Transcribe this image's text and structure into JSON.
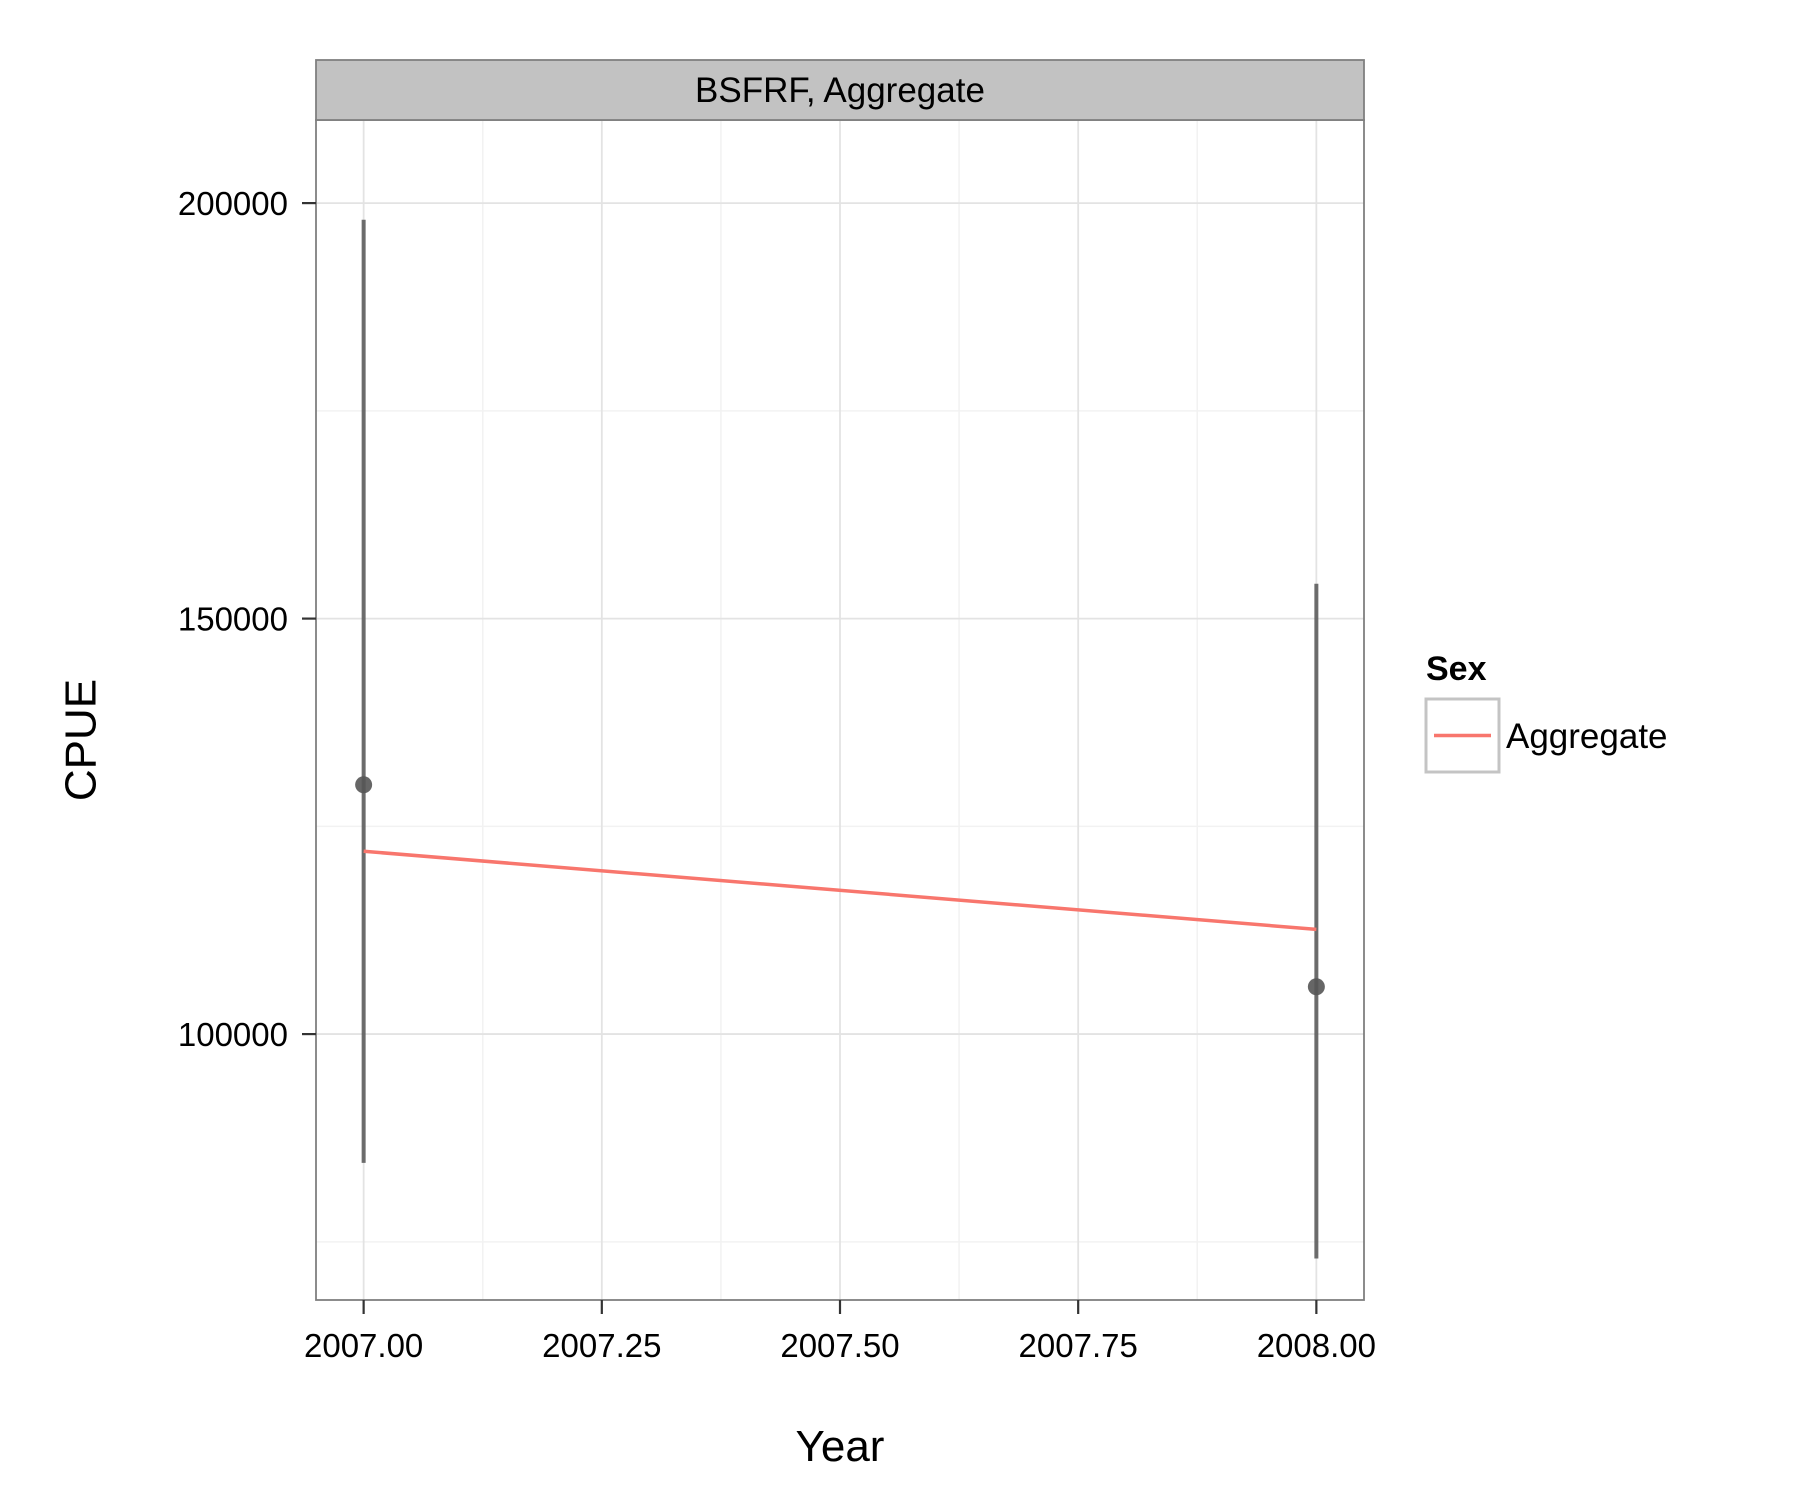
{
  "chart_data": {
    "type": "line",
    "facet_label": "BSFRF, Aggregate",
    "xlabel": "Year",
    "ylabel": "CPUE",
    "xlim": [
      2006.95,
      2008.05
    ],
    "ylim": [
      68000,
      210000
    ],
    "x_ticks": [
      2007.0,
      2007.25,
      2007.5,
      2007.75,
      2008.0
    ],
    "x_tick_labels": [
      "2007.00",
      "2007.25",
      "2007.50",
      "2007.75",
      "2008.00"
    ],
    "x_minor_ticks": [
      2007.125,
      2007.375,
      2007.625,
      2007.875
    ],
    "y_ticks": [
      100000,
      150000,
      200000
    ],
    "y_tick_labels": [
      "100000",
      "150000",
      "200000"
    ],
    "y_minor_ticks": [
      75000,
      125000,
      175000
    ],
    "grid": true,
    "legend": {
      "title": "Sex",
      "position": "right",
      "entries": [
        "Aggregate"
      ]
    },
    "observed": {
      "x": [
        2007,
        2008
      ],
      "y": [
        130000,
        105700
      ],
      "lower": [
        84500,
        73000
      ],
      "upper": [
        198000,
        154200
      ],
      "color": "#555555"
    },
    "series": [
      {
        "name": "Aggregate",
        "x": [
          2007,
          2008
        ],
        "y": [
          122000,
          112600
        ],
        "color": "#F8766D"
      }
    ]
  }
}
